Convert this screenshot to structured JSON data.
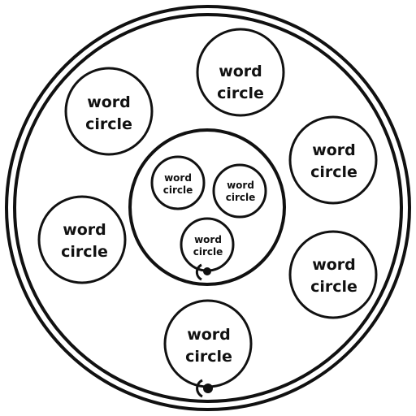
{
  "diagram": {
    "colors": {
      "stroke": "#111111",
      "background": "#ffffff",
      "text": "#111111"
    },
    "outer_circles": [
      {
        "lines": [
          "word",
          "circle"
        ]
      },
      {
        "lines": [
          "word",
          "circle"
        ]
      },
      {
        "lines": [
          "word",
          "circle"
        ]
      },
      {
        "lines": [
          "word",
          "circle"
        ]
      },
      {
        "lines": [
          "word",
          "circle"
        ]
      },
      {
        "lines": [
          "word",
          "circle"
        ]
      }
    ],
    "inner_circles": [
      {
        "lines": [
          "word",
          "circle"
        ]
      },
      {
        "lines": [
          "word",
          "circle"
        ]
      },
      {
        "lines": [
          "word",
          "circle"
        ]
      }
    ],
    "connectors": [
      {
        "semantic": "inner-cluster-anchor"
      },
      {
        "semantic": "outer-ring-anchor"
      }
    ]
  }
}
